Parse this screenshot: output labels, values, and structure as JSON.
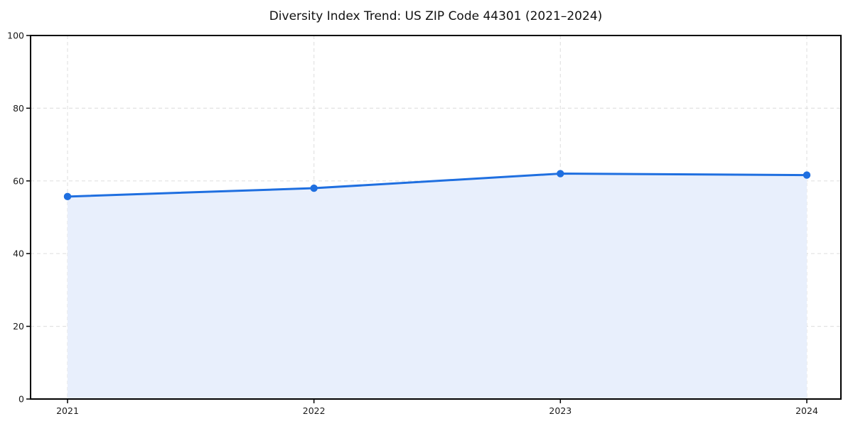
{
  "chart_data": {
    "type": "line",
    "title": "Diversity Index Trend: US ZIP Code 44301 (2021–2024)",
    "categories": [
      "2021",
      "2022",
      "2023",
      "2024"
    ],
    "series": [
      {
        "name": "Diversity Index",
        "values": [
          55.7,
          58.0,
          62.0,
          61.6
        ]
      }
    ],
    "xlabel": "",
    "ylabel": "",
    "ylim": [
      0,
      100
    ],
    "yticks": [
      0,
      20,
      40,
      60,
      80,
      100
    ],
    "grid": true,
    "grid_style": "dashed",
    "legend": "none",
    "area_fill": true,
    "marker": "circle",
    "colors": {
      "line": "#1f6fe0",
      "marker": "#1f6fe0",
      "fill": "#e8effc",
      "grid": "#e2e2e2",
      "frame": "#000000",
      "tick_label": "#1a1a1a",
      "title": "#111111",
      "background": "#ffffff"
    }
  }
}
